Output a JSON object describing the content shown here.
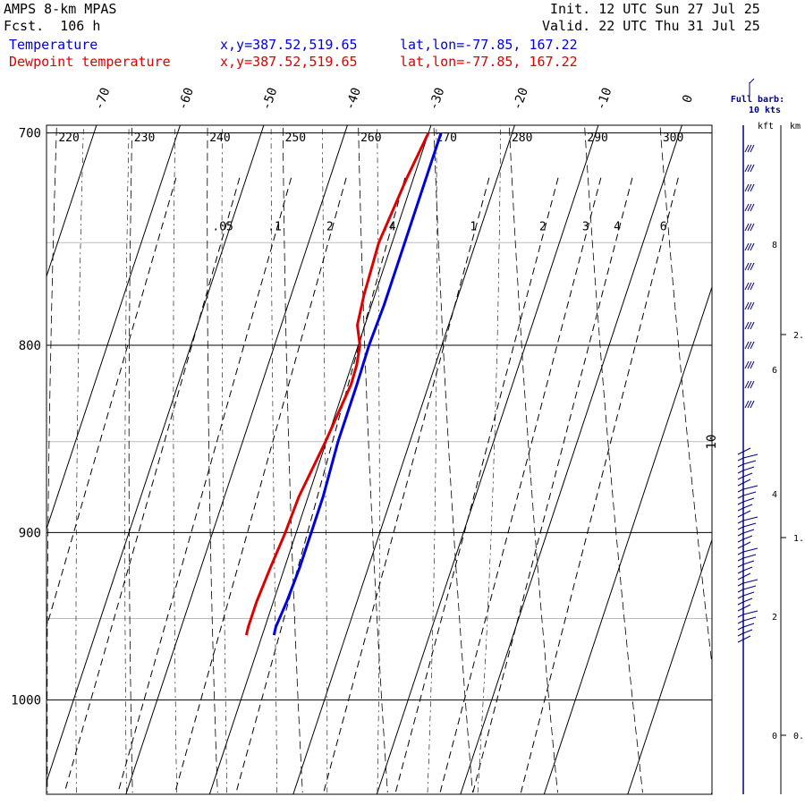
{
  "header": {
    "model": "AMPS 8-km MPAS",
    "fcst_label": "Fcst.",
    "fcst_value": "106 h",
    "init_label": "Init.",
    "init_value": "12 UTC Sun 27 Jul 25",
    "valid_label": "Valid.",
    "valid_value": "22 UTC Thu 31 Jul 25",
    "temperature_label": "Temperature",
    "dewpoint_label": "Dewpoint temperature",
    "xy": "x,y=387.52,519.65",
    "latlon": "lat,lon=-77.85, 167.22",
    "barb_title": "Full barb:",
    "barb_sub": "10 kts",
    "kft_label": "kft",
    "km_label": "km"
  },
  "colors": {
    "temperature": "#0000dd",
    "dewpoint": "#dd0000",
    "wind": "#000080"
  },
  "chart_data": {
    "type": "line",
    "pressure_ticks": [
      "700",
      "800",
      "900",
      "1000"
    ],
    "pressure_values": [
      700,
      800,
      900,
      1000
    ],
    "temp_ticks": [
      "-70",
      "-60",
      "-50",
      "-40",
      "-30",
      "-20",
      "-10",
      "0"
    ],
    "theta_labels": [
      "220",
      "230",
      "240",
      "250",
      "260",
      "270",
      "280",
      "290",
      "300"
    ],
    "mixing_labels": [
      ".05",
      ".1",
      "2",
      ".4",
      "1",
      "2",
      "3",
      "4",
      "6"
    ],
    "kft_labels": [
      "8",
      "6",
      "4",
      "2",
      "0"
    ],
    "km_labels": [
      "2.",
      "1.",
      "0."
    ],
    "wind_speed_label": "10",
    "series": [
      {
        "name": "Temperature",
        "p": [
          700,
          720,
          750,
          780,
          800,
          820,
          850,
          880,
          900,
          920,
          940,
          955,
          960
        ],
        "t": [
          -28.5,
          -28.5,
          -28.5,
          -28.5,
          -28.7,
          -28.6,
          -28.6,
          -28.2,
          -28.2,
          -28.2,
          -28.4,
          -28.7,
          -28.6
        ]
      },
      {
        "name": "Dewpoint temperature",
        "p": [
          700,
          720,
          750,
          775,
          790,
          800,
          810,
          820,
          850,
          880,
          900,
          920,
          940,
          955,
          960
        ],
        "t": [
          -30.0,
          -30.8,
          -31.6,
          -31.3,
          -30.9,
          -29.8,
          -29.4,
          -29.3,
          -30.1,
          -31.1,
          -31.3,
          -31.7,
          -32.0,
          -32.0,
          -31.9
        ]
      }
    ]
  }
}
